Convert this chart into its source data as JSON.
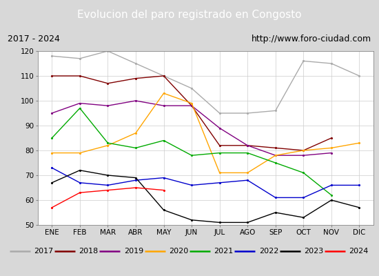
{
  "title": "Evolucion del paro registrado en Congosto",
  "subtitle_left": "2017 - 2024",
  "subtitle_right": "http://www.foro-ciudad.com",
  "ylim": [
    50,
    120
  ],
  "yticks": [
    50,
    60,
    70,
    80,
    90,
    100,
    110,
    120
  ],
  "months": [
    "ENE",
    "FEB",
    "MAR",
    "ABR",
    "MAY",
    "JUN",
    "JUL",
    "AGO",
    "SEP",
    "OCT",
    "NOV",
    "DIC"
  ],
  "series": {
    "2017": {
      "color": "#aaaaaa",
      "data": [
        118,
        117,
        120,
        115,
        110,
        105,
        95,
        95,
        96,
        116,
        115,
        110
      ]
    },
    "2018": {
      "color": "#800000",
      "data": [
        110,
        110,
        107,
        109,
        110,
        98,
        82,
        82,
        81,
        80,
        85,
        null
      ]
    },
    "2019": {
      "color": "#800080",
      "data": [
        95,
        99,
        98,
        100,
        98,
        98,
        89,
        82,
        78,
        78,
        79,
        null
      ]
    },
    "2020": {
      "color": "#ffa500",
      "data": [
        79,
        79,
        82,
        87,
        103,
        99,
        71,
        71,
        78,
        80,
        81,
        83
      ]
    },
    "2021": {
      "color": "#00aa00",
      "data": [
        85,
        97,
        83,
        81,
        84,
        78,
        79,
        79,
        75,
        71,
        62,
        null
      ]
    },
    "2022": {
      "color": "#0000cc",
      "data": [
        73,
        67,
        66,
        68,
        69,
        66,
        67,
        68,
        61,
        61,
        66,
        66
      ]
    },
    "2023": {
      "color": "#000000",
      "data": [
        67,
        72,
        70,
        69,
        56,
        52,
        51,
        51,
        55,
        53,
        60,
        57
      ]
    },
    "2024": {
      "color": "#ff0000",
      "data": [
        57,
        63,
        64,
        65,
        64,
        null,
        null,
        null,
        null,
        null,
        null,
        null
      ]
    }
  },
  "background_color": "#d8d8d8",
  "plot_bg": "#ffffff",
  "title_bg": "#4472c4",
  "title_color": "#ffffff",
  "grid_color": "#cccccc",
  "legend_bg": "#e8e8e8"
}
